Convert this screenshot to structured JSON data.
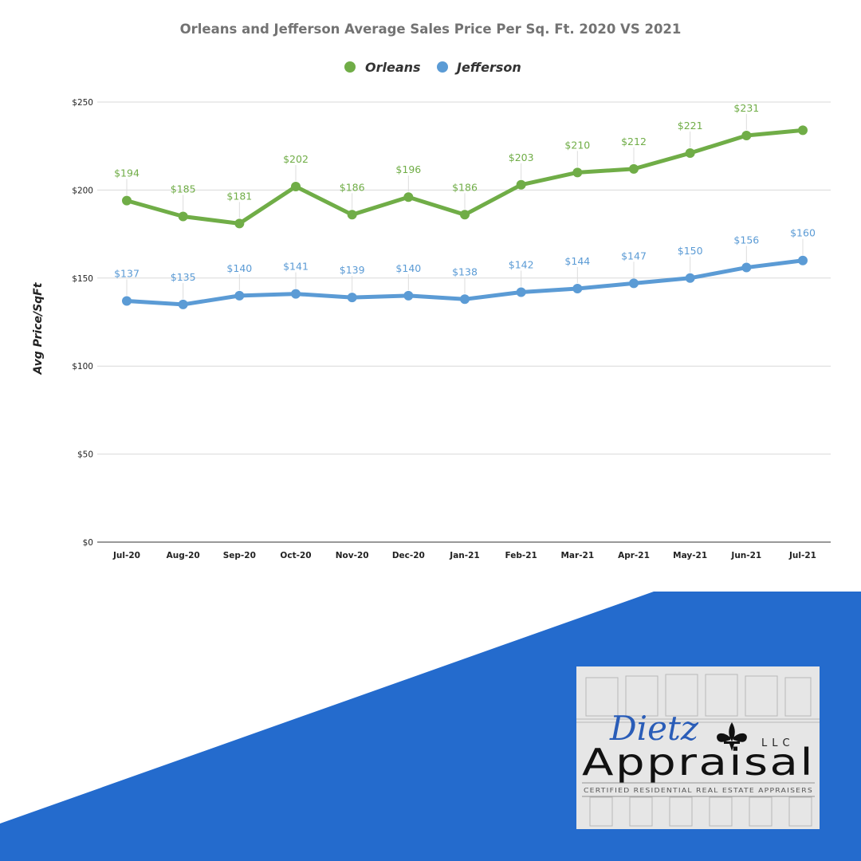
{
  "colors": {
    "orleans": "#70ad47",
    "jefferson": "#5b9bd5",
    "banner_blue": "#246bcd",
    "grid": "#d9d9d9"
  },
  "chart_data": {
    "type": "line",
    "title": "Orleans and Jefferson Average Sales Price Per Sq. Ft. 2020 VS 2021",
    "xlabel": "",
    "ylabel": "Avg Price/SqFt",
    "categories": [
      "Jul-20",
      "Aug-20",
      "Sep-20",
      "Oct-20",
      "Nov-20",
      "Dec-20",
      "Jan-21",
      "Feb-21",
      "Mar-21",
      "Apr-21",
      "May-21",
      "Jun-21",
      "Jul-21"
    ],
    "ylim": [
      0,
      250
    ],
    "yticks": [
      0,
      50,
      100,
      150,
      200,
      250
    ],
    "ytick_labels": [
      "$0",
      "$50",
      "$100",
      "$150",
      "$200",
      "$250"
    ],
    "grid": true,
    "legend_position": "top-center",
    "series": [
      {
        "name": "Orleans",
        "values": [
          194,
          185,
          181,
          202,
          186,
          196,
          186,
          203,
          210,
          212,
          221,
          231,
          234
        ],
        "labels": [
          "$194",
          "$185",
          "$181",
          "$202",
          "$186",
          "$196",
          "$186",
          "$203",
          "$210",
          "$212",
          "$221",
          "$231",
          ""
        ]
      },
      {
        "name": "Jefferson",
        "values": [
          137,
          135,
          140,
          141,
          139,
          140,
          138,
          142,
          144,
          147,
          150,
          156,
          160
        ],
        "labels": [
          "$137",
          "$135",
          "$140",
          "$141",
          "$139",
          "$140",
          "$138",
          "$142",
          "$144",
          "$147",
          "$150",
          "$156",
          "$160"
        ]
      }
    ]
  },
  "logo": {
    "script": "Dietz",
    "llc": "LLC",
    "main": "Appraisal",
    "tagline": "CERTIFIED RESIDENTIAL REAL ESTATE APPRAISERS"
  }
}
